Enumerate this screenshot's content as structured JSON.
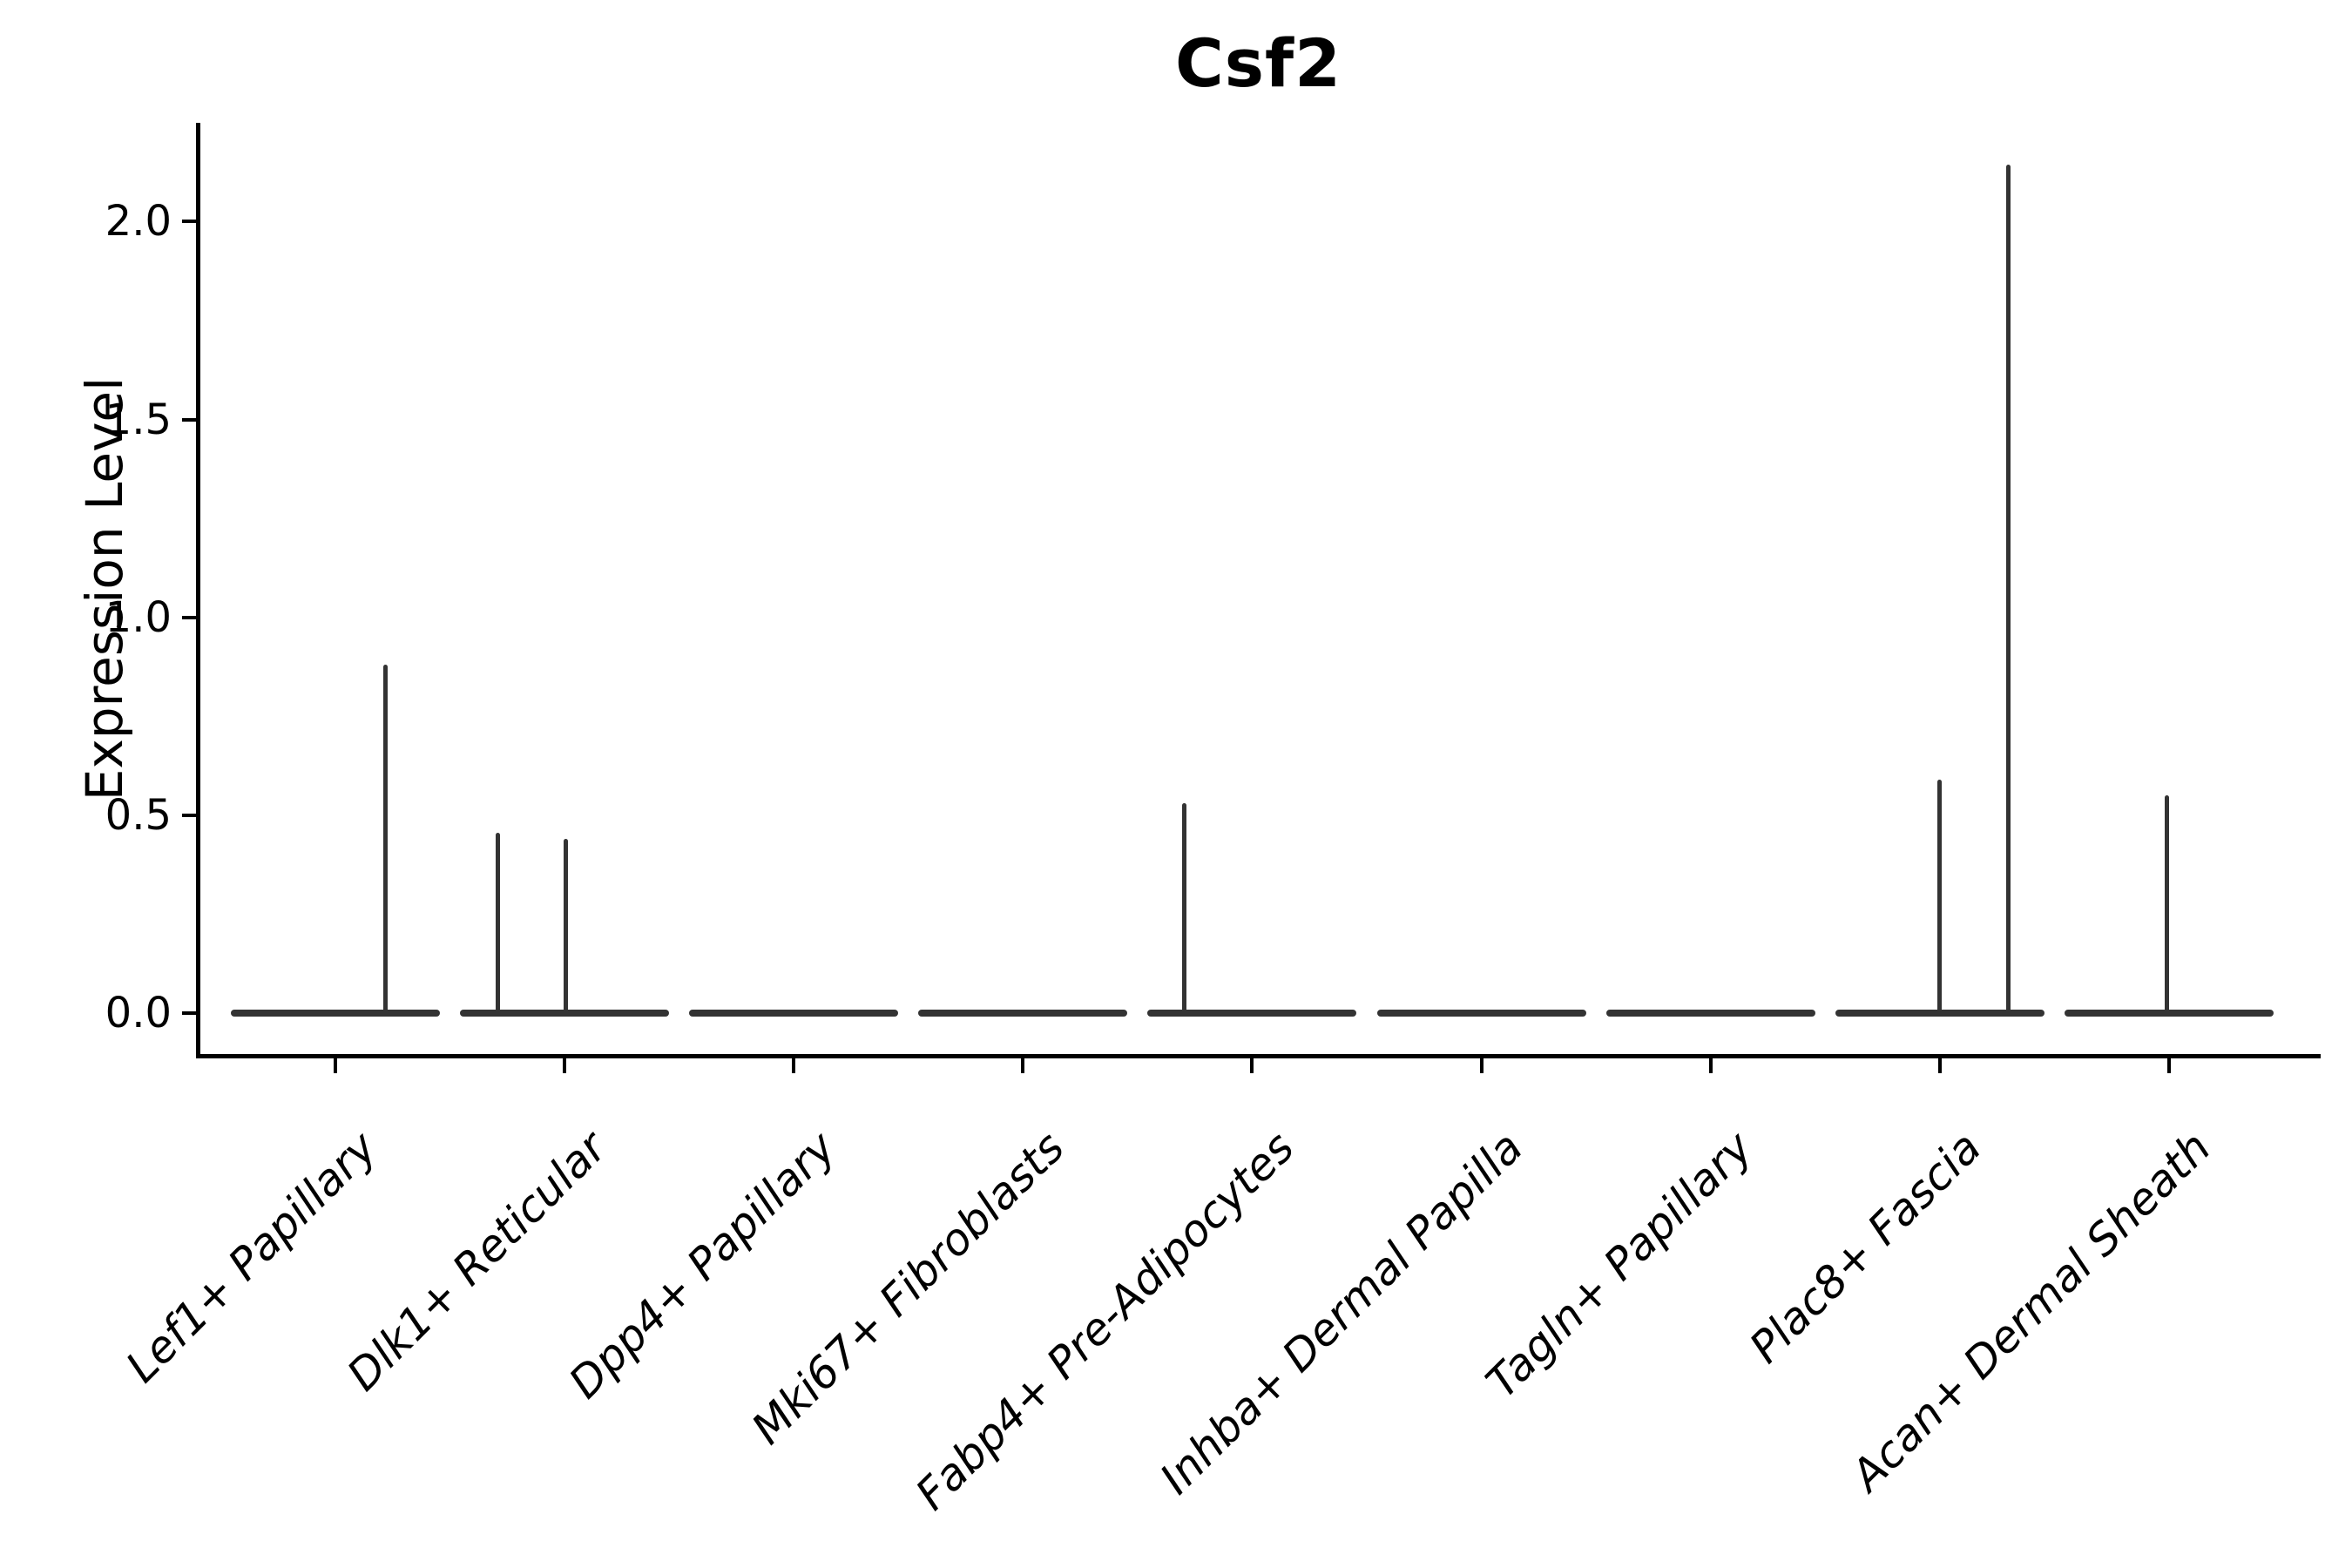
{
  "chart_data": {
    "type": "violin",
    "title": "Csf2",
    "xlabel": "",
    "ylabel": "Expression Level",
    "categories": [
      "Lef1+ Papillary",
      "Dlk1+ Reticular",
      "Dpp4+ Papillary",
      "Mki67+ Fibroblasts",
      "Fabp4+ Pre-Adipocytes",
      "Inhba+ Dermal Papilla",
      "Tagln+ Papillary",
      "Plac8+ Fascia",
      "Acan+ Dermal Sheath"
    ],
    "yticks": [
      0.0,
      0.5,
      1.0,
      1.5,
      2.0
    ],
    "ylim": [
      -0.11,
      2.25
    ],
    "grid": false,
    "legend_position": "none",
    "violins": [
      {
        "category": "Lef1+ Papillary",
        "base_value": 0,
        "max_value": 0.88,
        "spikes": [
          {
            "offset": 0.22,
            "peak": 0.88
          }
        ]
      },
      {
        "category": "Dlk1+ Reticular",
        "base_value": 0,
        "max_value": 0.455,
        "spikes": [
          {
            "offset": -0.293,
            "peak": 0.455
          },
          {
            "offset": 0.006,
            "peak": 0.44
          }
        ]
      },
      {
        "category": "Dpp4+ Papillary",
        "base_value": 0,
        "max_value": 0,
        "spikes": []
      },
      {
        "category": "Mki67+ Fibroblasts",
        "base_value": 0,
        "max_value": 0,
        "spikes": []
      },
      {
        "category": "Fabp4+ Pre-Adipocytes",
        "base_value": 0,
        "max_value": 0.53,
        "spikes": [
          {
            "offset": -0.297,
            "peak": 0.53
          }
        ]
      },
      {
        "category": "Inhba+ Dermal Papilla",
        "base_value": 0,
        "max_value": 0,
        "spikes": []
      },
      {
        "category": "Tagln+ Papillary",
        "base_value": 0,
        "max_value": 0,
        "spikes": []
      },
      {
        "category": "Plac8+ Fascia",
        "base_value": 0,
        "max_value": 2.145,
        "spikes": [
          {
            "offset": 0.0,
            "peak": 0.59
          },
          {
            "offset": 0.3,
            "peak": 2.145
          }
        ]
      },
      {
        "category": "Acan+ Dermal Sheath",
        "base_value": 0,
        "max_value": 0.55,
        "spikes": [
          {
            "offset": -0.008,
            "peak": 0.55
          }
        ]
      }
    ],
    "colors": {
      "line": "#333333",
      "axis": "#000000",
      "text": "#000000",
      "background": "#ffffff"
    }
  }
}
